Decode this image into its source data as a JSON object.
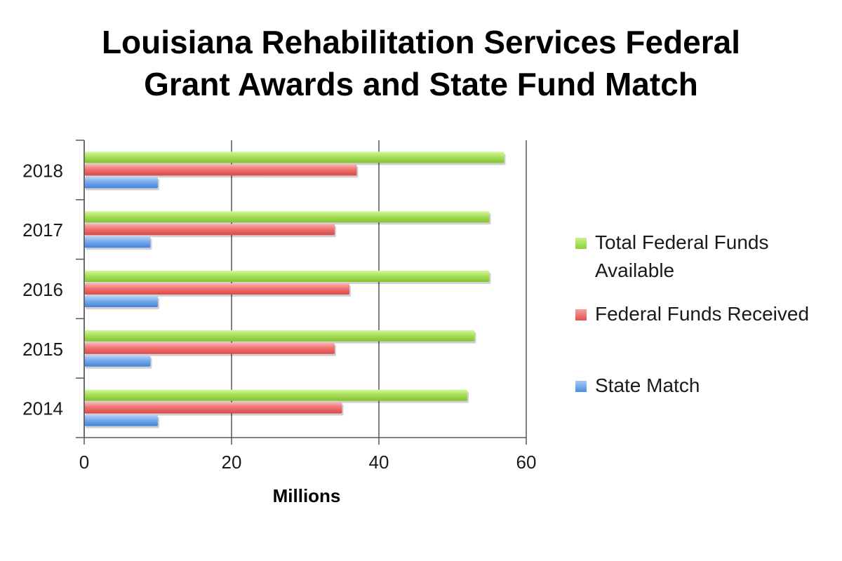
{
  "chart_data": {
    "type": "bar",
    "orientation": "horizontal",
    "title": "Louisiana Rehabilitation Services Federal Grant Awards and State Fund Match",
    "title_lines": [
      "Louisiana Rehabilitation Services Federal",
      "Grant Awards and State Fund Match"
    ],
    "categories": [
      "2014",
      "2015",
      "2016",
      "2017",
      "2018"
    ],
    "series": [
      {
        "name": "Total Federal Funds Available",
        "color": "#9ad94a",
        "values": [
          52,
          53,
          55,
          55,
          57
        ]
      },
      {
        "name": "Federal Funds Received",
        "color": "#e8605f",
        "values": [
          35,
          34,
          36,
          34,
          37
        ]
      },
      {
        "name": "State Match",
        "color": "#5a96e3",
        "values": [
          10,
          9,
          10,
          9,
          10
        ]
      }
    ],
    "xlabel": "Millions",
    "ylabel": "",
    "xlim": [
      0,
      60
    ],
    "xticks": [
      0,
      20,
      40,
      60
    ],
    "grid": true,
    "legend_position": "right"
  }
}
